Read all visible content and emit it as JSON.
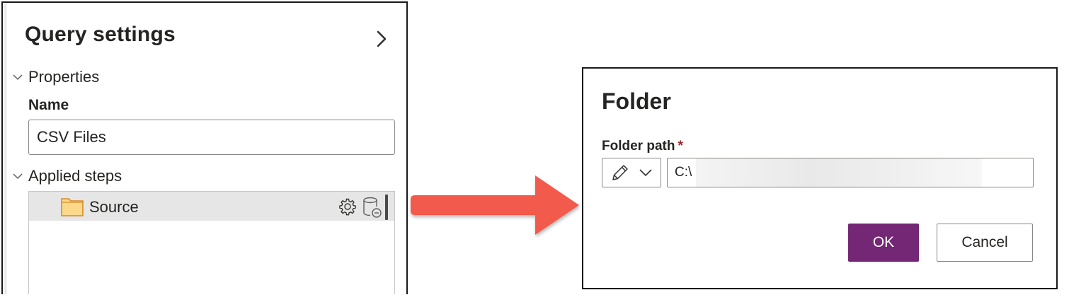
{
  "query_settings": {
    "title": "Query settings",
    "collapse_icon": "chevron-right-icon",
    "properties": {
      "header": "Properties",
      "name_label": "Name",
      "name_value": "CSV Files"
    },
    "applied_steps": {
      "header": "Applied steps",
      "steps": [
        {
          "label": "Source",
          "icon": "folder-icon",
          "actions": [
            "gear-icon",
            "database-remove-icon"
          ]
        }
      ]
    }
  },
  "arrow": {
    "color": "#f25a4b"
  },
  "folder_dialog": {
    "title": "Folder",
    "path_label": "Folder path",
    "required_marker": "*",
    "mode_icon": "pencil-icon",
    "path_value": "C:\\",
    "ok_label": "OK",
    "cancel_label": "Cancel",
    "ok_color": "#742774"
  }
}
